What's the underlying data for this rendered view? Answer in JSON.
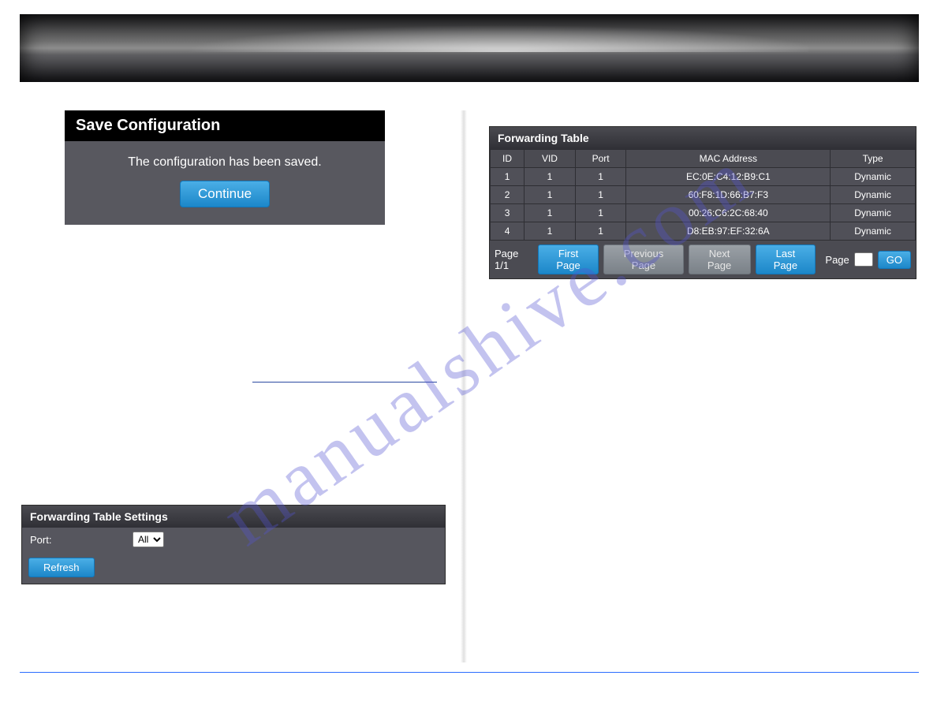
{
  "save_panel": {
    "title": "Save Configuration",
    "message": "The configuration has been saved.",
    "continue_label": "Continue"
  },
  "fts_panel": {
    "title": "Forwarding Table Settings",
    "port_label": "Port:",
    "port_value": "All",
    "refresh_label": "Refresh"
  },
  "ft_panel": {
    "title": "Forwarding Table",
    "col_widths_pct": [
      8,
      12,
      12,
      48,
      20
    ],
    "columns": [
      "ID",
      "VID",
      "Port",
      "MAC Address",
      "Type"
    ],
    "rows": [
      [
        "1",
        "1",
        "1",
        "EC:0E:C4:12:B9:C1",
        "Dynamic"
      ],
      [
        "2",
        "1",
        "1",
        "60:F8:1D:66:B7:F3",
        "Dynamic"
      ],
      [
        "3",
        "1",
        "1",
        "00:26:C6:2C:68:40",
        "Dynamic"
      ],
      [
        "4",
        "1",
        "1",
        "D8:EB:97:EF:32:6A",
        "Dynamic"
      ]
    ],
    "pager": {
      "page_text": "Page 1/1",
      "first": "First Page",
      "prev": "Previous Page",
      "next": "Next Page",
      "last": "Last Page",
      "page_label": "Page",
      "go": "GO",
      "input_value": ""
    }
  },
  "watermark": "manualshive.com",
  "colors": {
    "btn_blue_top": "#4aaee6",
    "btn_blue_bottom": "#1c87c9",
    "panel_body": "#58585f",
    "table_row": "#505058",
    "rule": "#2b6cff"
  }
}
